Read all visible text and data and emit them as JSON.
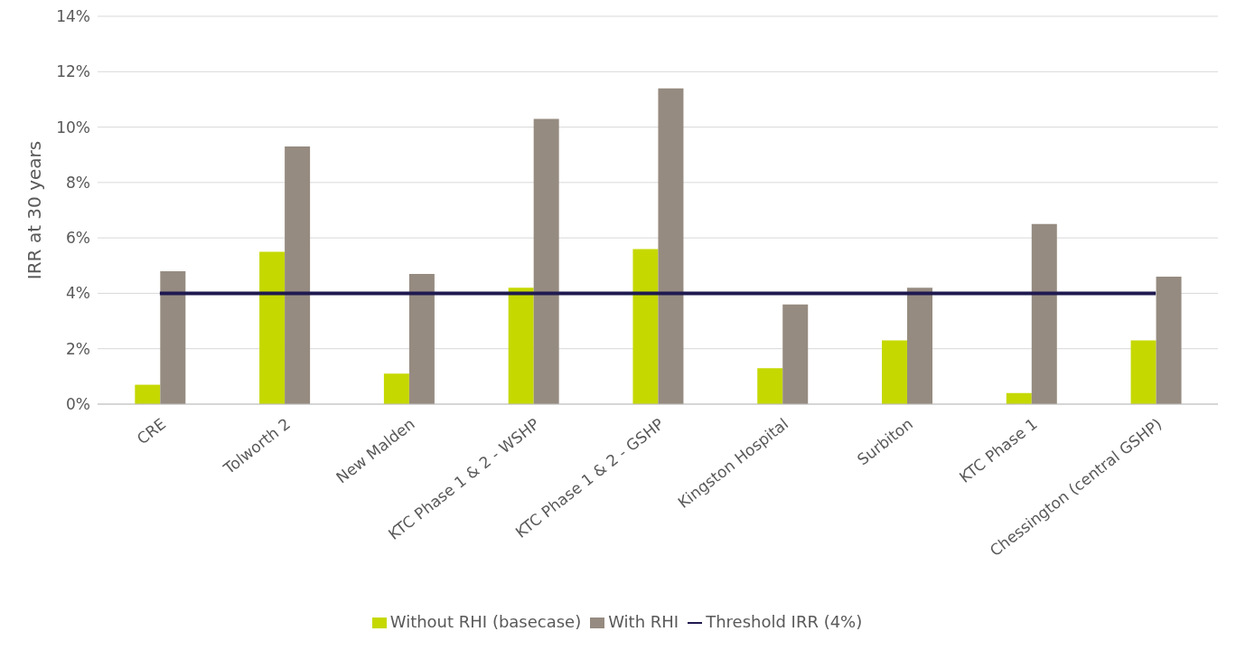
{
  "chart_data": {
    "type": "bar",
    "ylabel": "IRR at 30 years",
    "categories": [
      "CRE",
      "Tolworth 2",
      "New Malden",
      "KTC Phase 1 & 2 - WSHP",
      "KTC Phase 1 & 2 - GSHP",
      "Kingston Hospital",
      "Surbiton",
      "KTC Phase 1",
      "Chessington (central GSHP)"
    ],
    "series": [
      {
        "name": "Without RHI (basecase)",
        "color": "#c5d800",
        "values": [
          0.7,
          5.5,
          1.1,
          4.2,
          5.6,
          1.3,
          2.3,
          0.4,
          2.3
        ]
      },
      {
        "name": "With RHI",
        "color": "#968b80",
        "values": [
          4.8,
          9.3,
          4.7,
          10.3,
          11.4,
          3.6,
          4.2,
          6.5,
          4.6
        ]
      },
      {
        "name": "Threshold IRR (4%)",
        "type": "line",
        "color": "#1f1a4f",
        "values": [
          4,
          4,
          4,
          4,
          4,
          4,
          4,
          4,
          4
        ]
      }
    ],
    "ylim": [
      0,
      14
    ],
    "yticks": [
      {
        "value": 0,
        "label": "0%"
      },
      {
        "value": 2,
        "label": "2%"
      },
      {
        "value": 4,
        "label": "4%"
      },
      {
        "value": 6,
        "label": "6%"
      },
      {
        "value": 8,
        "label": "8%"
      },
      {
        "value": 10,
        "label": "10%"
      },
      {
        "value": 12,
        "label": "12%"
      },
      {
        "value": 14,
        "label": "14%"
      }
    ],
    "grid": "y",
    "legend": "bottom",
    "marker": "none"
  }
}
